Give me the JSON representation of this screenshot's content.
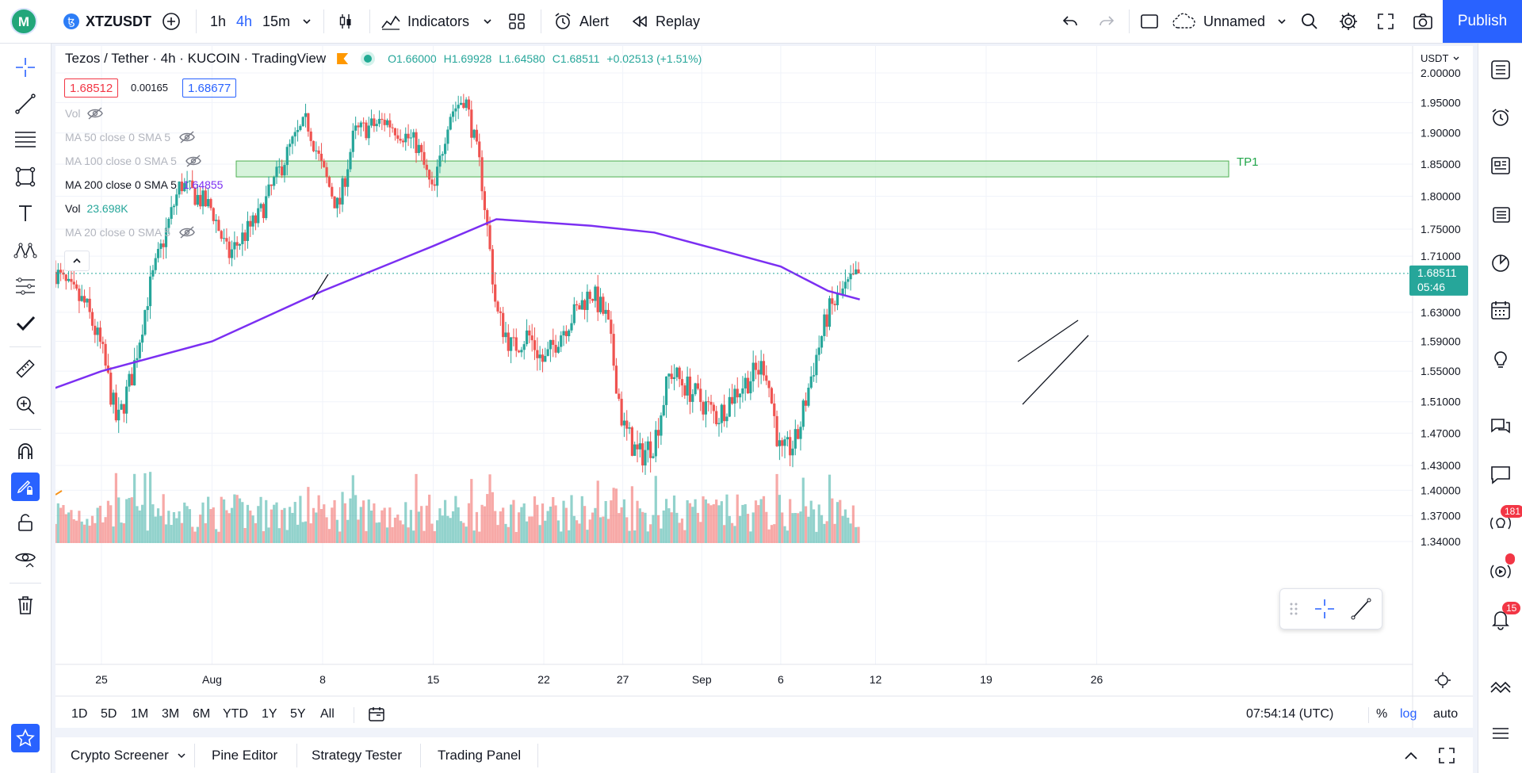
{
  "topbar": {
    "symbol": "XTZUSDT",
    "intervals": [
      "1h",
      "4h",
      "15m"
    ],
    "indicators_label": "Indicators",
    "alert_label": "Alert",
    "replay_label": "Replay",
    "layout_name": "Unnamed",
    "publish_label": "Publish"
  },
  "legend": {
    "title": "Tezos / Tether · 4h · KUCOIN · TradingView",
    "ohlc": {
      "o": "O1.66000",
      "h": "H1.69928",
      "l": "L1.64580",
      "c": "C1.68511",
      "chg": "+0.02513 (+1.51%)"
    },
    "bid": "1.68512",
    "spread": "0.00165",
    "ask": "1.68677",
    "vol_label": "Vol",
    "ma50": "MA 50 close 0 SMA 5",
    "ma100": "MA 100 close 0 SMA 5",
    "ma200": "MA 200 close 0 SMA 5",
    "ma200_value": "1.64855",
    "vol2_label": "Vol",
    "vol2_value": "23.698K",
    "ma20": "MA 20 close 0 SMA 5"
  },
  "chart_data": {
    "type": "candlestick",
    "currency": "USDT",
    "y_ticks": [
      "2.00000",
      "1.95000",
      "1.90000",
      "1.85000",
      "1.80000",
      "1.75000",
      "1.71000",
      "1.63000",
      "1.59000",
      "1.55000",
      "1.51000",
      "1.47000",
      "1.43000",
      "1.40000",
      "1.37000",
      "1.34000"
    ],
    "x_ticks": [
      "25",
      "Aug",
      "8",
      "15",
      "22",
      "27",
      "Sep",
      "6",
      "12",
      "19",
      "26"
    ],
    "last_price": "1.68511",
    "countdown": "05:46",
    "zone_label": "TP1",
    "zone_range": [
      1.83,
      1.855
    ],
    "close_path": [
      {
        "date": "Jul-21",
        "price": 1.68
      },
      {
        "date": "Jul-22",
        "price": 1.69
      },
      {
        "date": "Jul-23",
        "price": 1.66
      },
      {
        "date": "Jul-24",
        "price": 1.64
      },
      {
        "date": "Jul-25",
        "price": 1.58
      },
      {
        "date": "Jul-26",
        "price": 1.48
      },
      {
        "date": "Jul-27",
        "price": 1.55
      },
      {
        "date": "Jul-28",
        "price": 1.66
      },
      {
        "date": "Jul-30",
        "price": 1.82
      },
      {
        "date": "Aug-01",
        "price": 1.78
      },
      {
        "date": "Aug-02",
        "price": 1.71
      },
      {
        "date": "Aug-04",
        "price": 1.77
      },
      {
        "date": "Aug-06",
        "price": 1.88
      },
      {
        "date": "Aug-07",
        "price": 1.92
      },
      {
        "date": "Aug-08",
        "price": 1.84
      },
      {
        "date": "Aug-09",
        "price": 1.78
      },
      {
        "date": "Aug-10",
        "price": 1.9
      },
      {
        "date": "Aug-12",
        "price": 1.92
      },
      {
        "date": "Aug-14",
        "price": 1.88
      },
      {
        "date": "Aug-15",
        "price": 1.8
      },
      {
        "date": "Aug-16",
        "price": 1.93
      },
      {
        "date": "Aug-17",
        "price": 1.96
      },
      {
        "date": "Aug-18",
        "price": 1.84
      },
      {
        "date": "Aug-19",
        "price": 1.63
      },
      {
        "date": "Aug-20",
        "price": 1.58
      },
      {
        "date": "Aug-21",
        "price": 1.6
      },
      {
        "date": "Aug-22",
        "price": 1.56
      },
      {
        "date": "Aug-23",
        "price": 1.6
      },
      {
        "date": "Aug-25",
        "price": 1.66
      },
      {
        "date": "Aug-26",
        "price": 1.62
      },
      {
        "date": "Aug-27",
        "price": 1.48
      },
      {
        "date": "Aug-28",
        "price": 1.44
      },
      {
        "date": "Aug-29",
        "price": 1.46
      },
      {
        "date": "Aug-30",
        "price": 1.55
      },
      {
        "date": "Sep-01",
        "price": 1.51
      },
      {
        "date": "Sep-02",
        "price": 1.49
      },
      {
        "date": "Sep-03",
        "price": 1.52
      },
      {
        "date": "Sep-05",
        "price": 1.56
      },
      {
        "date": "Sep-06",
        "price": 1.44
      },
      {
        "date": "Sep-07",
        "price": 1.46
      },
      {
        "date": "Sep-08",
        "price": 1.55
      },
      {
        "date": "Sep-09",
        "price": 1.63
      },
      {
        "date": "Sep-10",
        "price": 1.66
      },
      {
        "date": "Sep-11",
        "price": 1.685
      }
    ],
    "ma200_path": [
      {
        "date": "Jul-21",
        "price": 1.52
      },
      {
        "date": "Jul-25",
        "price": 1.55
      },
      {
        "date": "Aug-01",
        "price": 1.59
      },
      {
        "date": "Aug-08",
        "price": 1.66
      },
      {
        "date": "Aug-15",
        "price": 1.725
      },
      {
        "date": "Aug-19",
        "price": 1.765
      },
      {
        "date": "Aug-22",
        "price": 1.76
      },
      {
        "date": "Aug-25",
        "price": 1.755
      },
      {
        "date": "Aug-29",
        "price": 1.745
      },
      {
        "date": "Sep-02",
        "price": 1.72
      },
      {
        "date": "Sep-06",
        "price": 1.695
      },
      {
        "date": "Sep-09",
        "price": 1.66
      },
      {
        "date": "Sep-11",
        "price": 1.648
      }
    ]
  },
  "timebar": {
    "ranges": [
      "1D",
      "5D",
      "1M",
      "3M",
      "6M",
      "YTD",
      "1Y",
      "5Y",
      "All"
    ],
    "clock": "07:54:14 (UTC)",
    "pct": "%",
    "log": "log",
    "auto": "auto"
  },
  "bottom": {
    "tabs": [
      "Crypto Screener",
      "Pine Editor",
      "Strategy Tester",
      "Trading Panel"
    ]
  },
  "rightbar": {
    "badge1": "181",
    "badge2": "15"
  },
  "colors": {
    "up": "#26a69a",
    "down": "#ef5350",
    "ma200": "#7b2ff2",
    "accent": "#2962ff",
    "zone": "#c8efcf"
  }
}
